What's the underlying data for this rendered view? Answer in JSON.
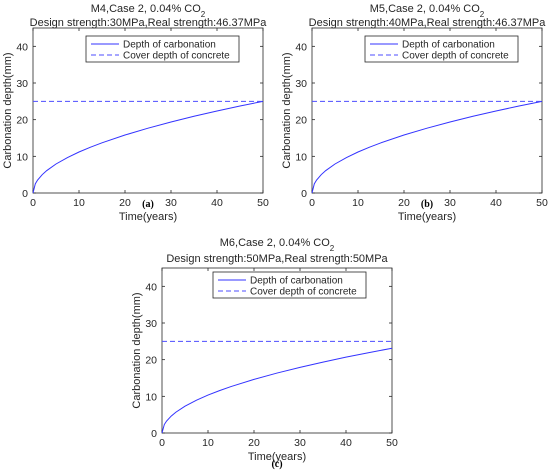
{
  "chart_data": [
    {
      "type": "line",
      "title": "M4,Case 2, 0.04% CO₂",
      "subtitle": "Design strength:30MPa,Real strength:46.37MPa",
      "xlabel": "Time(years)",
      "ylabel": "Carbonation depth(mm)",
      "xlim": [
        0,
        50
      ],
      "ylim": [
        0,
        45
      ],
      "xticks": [
        "0",
        "10",
        "20",
        "30",
        "40",
        "50"
      ],
      "yticks": [
        "0",
        "10",
        "20",
        "30",
        "40"
      ],
      "grid": false,
      "legend_position": "top",
      "caption": "(a)",
      "series": [
        {
          "name": "Depth of carbonation",
          "style": "solid",
          "x": [
            0,
            0.5,
            1,
            2,
            3,
            5,
            7.5,
            10,
            12.5,
            15,
            20,
            25,
            30,
            35,
            40,
            45,
            50
          ],
          "y": [
            0,
            2.5,
            3.54,
            5.0,
            6.12,
            7.91,
            9.68,
            11.18,
            12.5,
            13.69,
            15.81,
            17.68,
            19.36,
            20.92,
            22.36,
            23.72,
            25.0
          ]
        },
        {
          "name": "Cover depth of concrete",
          "style": "dashed",
          "x": [
            0,
            50
          ],
          "y": [
            25,
            25
          ]
        }
      ]
    },
    {
      "type": "line",
      "title": "M5,Case 2, 0.04% CO₂",
      "subtitle": "Design strength:40MPa,Real strength:46.37MPa",
      "xlabel": "Time(years)",
      "ylabel": "Carbonation depth(mm)",
      "xlim": [
        0,
        50
      ],
      "ylim": [
        0,
        45
      ],
      "xticks": [
        "0",
        "10",
        "20",
        "30",
        "40",
        "50"
      ],
      "yticks": [
        "0",
        "10",
        "20",
        "30",
        "40"
      ],
      "grid": false,
      "legend_position": "top",
      "caption": "(b)",
      "series": [
        {
          "name": "Depth of carbonation",
          "style": "solid",
          "x": [
            0,
            0.5,
            1,
            2,
            3,
            5,
            7.5,
            10,
            12.5,
            15,
            20,
            25,
            30,
            35,
            40,
            45,
            50
          ],
          "y": [
            0,
            2.5,
            3.54,
            5.0,
            6.12,
            7.91,
            9.68,
            11.18,
            12.5,
            13.69,
            15.81,
            17.68,
            19.36,
            20.92,
            22.36,
            23.72,
            25.0
          ]
        },
        {
          "name": "Cover depth of concrete",
          "style": "dashed",
          "x": [
            0,
            50
          ],
          "y": [
            25,
            25
          ]
        }
      ]
    },
    {
      "type": "line",
      "title": "M6,Case 2, 0.04% CO₂",
      "subtitle": "Design strength:50MPa,Real strength:50MPa",
      "xlabel": "Time(years)",
      "ylabel": "Carbonation depth(mm)",
      "xlim": [
        0,
        50
      ],
      "ylim": [
        0,
        45
      ],
      "xticks": [
        "0",
        "10",
        "20",
        "30",
        "40",
        "50"
      ],
      "yticks": [
        "0",
        "10",
        "20",
        "30",
        "40"
      ],
      "grid": false,
      "legend_position": "top",
      "caption": "(c)",
      "series": [
        {
          "name": "Depth of carbonation",
          "style": "solid",
          "x": [
            0,
            0.5,
            1,
            2,
            3,
            5,
            7.5,
            10,
            12.5,
            15,
            20,
            25,
            30,
            35,
            40,
            45,
            50
          ],
          "y": [
            0,
            2.31,
            3.27,
            4.62,
            5.66,
            7.31,
            8.95,
            10.34,
            11.56,
            12.66,
            14.62,
            16.35,
            17.91,
            19.34,
            20.68,
            21.93,
            23.12
          ]
        },
        {
          "name": "Cover depth of concrete",
          "style": "dashed",
          "x": [
            0,
            50
          ],
          "y": [
            25,
            25
          ]
        }
      ]
    }
  ],
  "colors": {
    "series_line": "#3333ff",
    "dashed_line": "#4d4dff",
    "axes": "#262626",
    "background": "#ffffff"
  }
}
